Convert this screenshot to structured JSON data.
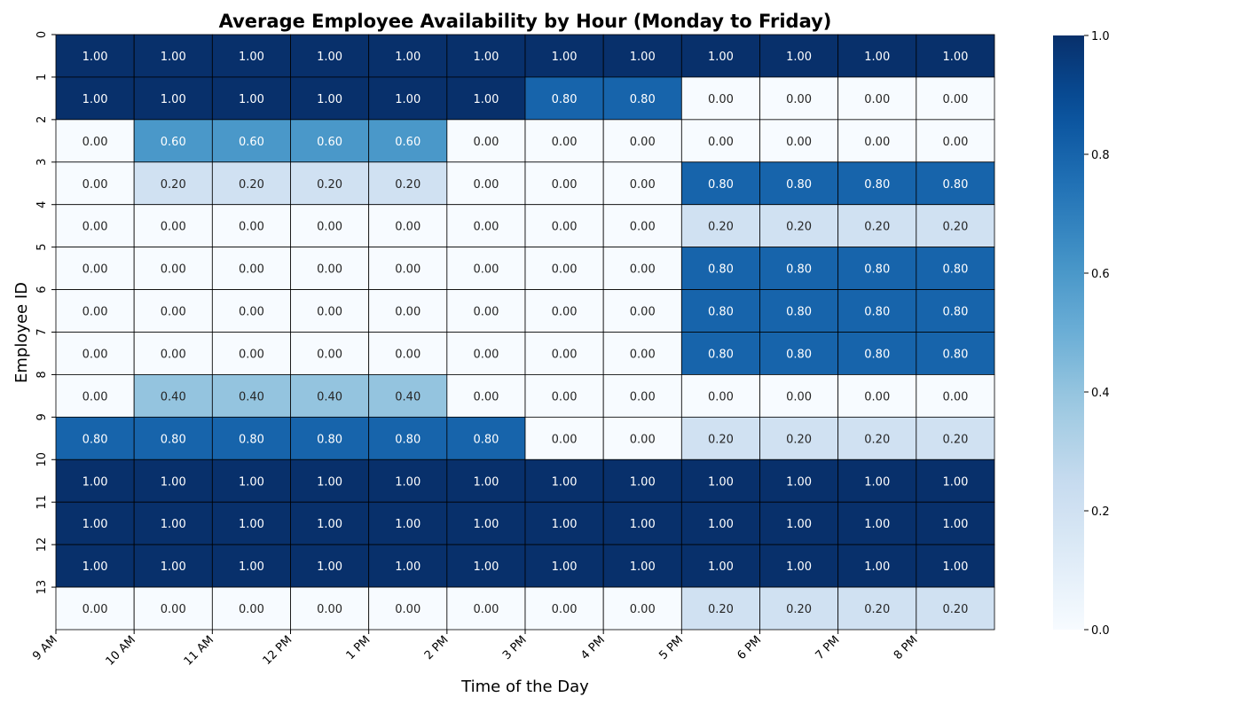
{
  "chart_data": {
    "type": "heatmap",
    "title": "Average Employee Availability by Hour (Monday to Friday)",
    "xlabel": "Time of the Day",
    "ylabel": "Employee ID",
    "x": [
      "9 AM",
      "10 AM",
      "11 AM",
      "12 PM",
      "1 PM",
      "2 PM",
      "3 PM",
      "4 PM",
      "5 PM",
      "6 PM",
      "7 PM",
      "8 PM"
    ],
    "y": [
      "0",
      "1",
      "2",
      "3",
      "4",
      "5",
      "6",
      "7",
      "8",
      "9",
      "10",
      "11",
      "12",
      "13"
    ],
    "values": [
      [
        1.0,
        1.0,
        1.0,
        1.0,
        1.0,
        1.0,
        1.0,
        1.0,
        1.0,
        1.0,
        1.0,
        1.0
      ],
      [
        1.0,
        1.0,
        1.0,
        1.0,
        1.0,
        1.0,
        0.8,
        0.8,
        0.0,
        0.0,
        0.0,
        0.0
      ],
      [
        0.0,
        0.6,
        0.6,
        0.6,
        0.6,
        0.0,
        0.0,
        0.0,
        0.0,
        0.0,
        0.0,
        0.0
      ],
      [
        0.0,
        0.2,
        0.2,
        0.2,
        0.2,
        0.0,
        0.0,
        0.0,
        0.8,
        0.8,
        0.8,
        0.8
      ],
      [
        0.0,
        0.0,
        0.0,
        0.0,
        0.0,
        0.0,
        0.0,
        0.0,
        0.2,
        0.2,
        0.2,
        0.2
      ],
      [
        0.0,
        0.0,
        0.0,
        0.0,
        0.0,
        0.0,
        0.0,
        0.0,
        0.8,
        0.8,
        0.8,
        0.8
      ],
      [
        0.0,
        0.0,
        0.0,
        0.0,
        0.0,
        0.0,
        0.0,
        0.0,
        0.8,
        0.8,
        0.8,
        0.8
      ],
      [
        0.0,
        0.0,
        0.0,
        0.0,
        0.0,
        0.0,
        0.0,
        0.0,
        0.8,
        0.8,
        0.8,
        0.8
      ],
      [
        0.0,
        0.4,
        0.4,
        0.4,
        0.4,
        0.0,
        0.0,
        0.0,
        0.0,
        0.0,
        0.0,
        0.0
      ],
      [
        0.8,
        0.8,
        0.8,
        0.8,
        0.8,
        0.8,
        0.0,
        0.0,
        0.2,
        0.2,
        0.2,
        0.2
      ],
      [
        1.0,
        1.0,
        1.0,
        1.0,
        1.0,
        1.0,
        1.0,
        1.0,
        1.0,
        1.0,
        1.0,
        1.0
      ],
      [
        1.0,
        1.0,
        1.0,
        1.0,
        1.0,
        1.0,
        1.0,
        1.0,
        1.0,
        1.0,
        1.0,
        1.0
      ],
      [
        1.0,
        1.0,
        1.0,
        1.0,
        1.0,
        1.0,
        1.0,
        1.0,
        1.0,
        1.0,
        1.0,
        1.0
      ],
      [
        0.0,
        0.0,
        0.0,
        0.0,
        0.0,
        0.0,
        0.0,
        0.0,
        0.2,
        0.2,
        0.2,
        0.2
      ]
    ],
    "value_format": "2 decimals",
    "colormap": "Blues",
    "vmin": 0.0,
    "vmax": 1.0,
    "colorbar_ticks": [
      "0.0",
      "0.2",
      "0.4",
      "0.6",
      "0.8",
      "1.0"
    ],
    "colors": {
      "low": "#f7fbff",
      "high": "#08306b",
      "cell_border": "#000000",
      "text_light": "#ffffff",
      "text_dark": "#262626"
    }
  }
}
